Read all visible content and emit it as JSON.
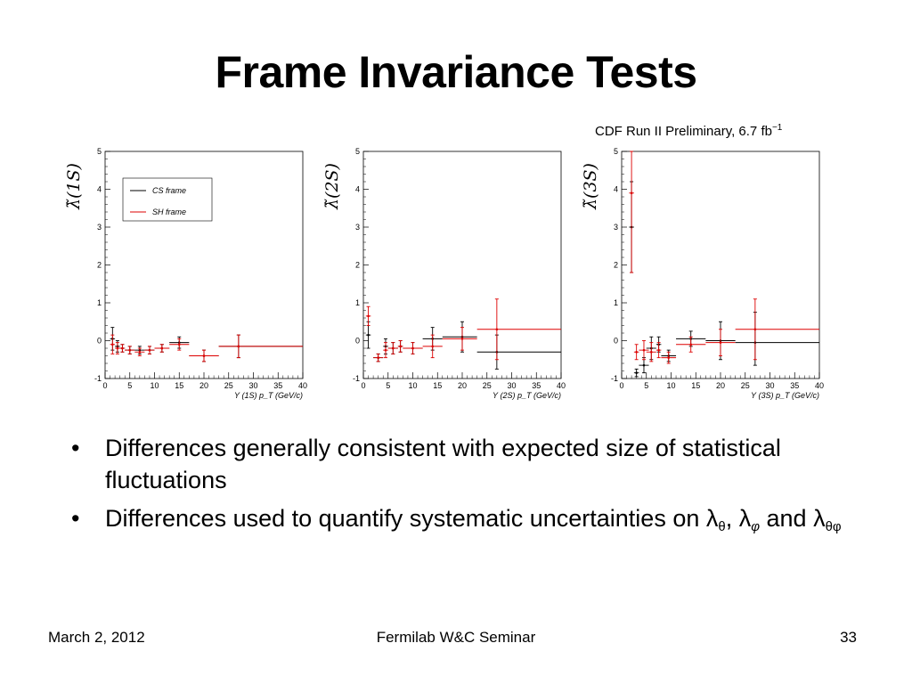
{
  "slide": {
    "title": "Frame Invariance Tests",
    "preliminary_label": "CDF Run II Preliminary, 6.7 fb",
    "preliminary_exp": "−1",
    "bullets": [
      {
        "text": "Differences generally consistent with expected size of statistical fluctuations"
      },
      {
        "text": "Differences used to quantify systematic uncertainties on ",
        "l1": "λ",
        "s1": "θ",
        "sep1": ", ",
        "l2": "λ",
        "s2": "φ",
        "sep2": " and ",
        "l3": "λ",
        "s3": "θφ"
      }
    ],
    "bullet_symbol": "•",
    "footer": {
      "date": "March 2, 2012",
      "event": "Fermilab W&C Seminar",
      "page": "33"
    }
  },
  "colors": {
    "cs_frame": "#000000",
    "sh_frame": "#dd0000"
  },
  "chart_data": [
    {
      "type": "scatter",
      "ylabel": "λ̃(1S)",
      "xlabel": "Υ (1S)  p_T  (GeV/c)",
      "xlim": [
        0,
        40
      ],
      "ylim": [
        -1,
        5
      ],
      "xticks": [
        "0",
        "5",
        "10",
        "15",
        "20",
        "25",
        "30",
        "35",
        "40"
      ],
      "yticks": [
        "-1",
        "0",
        "1",
        "2",
        "3",
        "4",
        "5"
      ],
      "legend": {
        "placement": "top-center",
        "entries": [
          "CS frame",
          "SH frame"
        ]
      },
      "series": [
        {
          "name": "CS frame",
          "points": [
            {
              "x": 1.5,
              "xlo": 1,
              "xhi": 2,
              "y": 0.05,
              "ylo": -0.25,
              "yhi": 0.35
            },
            {
              "x": 2.5,
              "xlo": 2,
              "xhi": 3,
              "y": -0.15,
              "ylo": -0.3,
              "yhi": 0.0
            },
            {
              "x": 3.5,
              "xlo": 3,
              "xhi": 4,
              "y": -0.2,
              "ylo": -0.3,
              "yhi": -0.1
            },
            {
              "x": 5,
              "xlo": 4,
              "xhi": 6,
              "y": -0.25,
              "ylo": -0.35,
              "yhi": -0.15
            },
            {
              "x": 7,
              "xlo": 6,
              "xhi": 8,
              "y": -0.25,
              "ylo": -0.35,
              "yhi": -0.15
            },
            {
              "x": 9,
              "xlo": 8,
              "xhi": 10,
              "y": -0.25,
              "ylo": -0.35,
              "yhi": -0.15
            },
            {
              "x": 11.5,
              "xlo": 10,
              "xhi": 13,
              "y": -0.2,
              "ylo": -0.3,
              "yhi": -0.1
            },
            {
              "x": 15,
              "xlo": 13,
              "xhi": 17,
              "y": -0.05,
              "ylo": -0.2,
              "yhi": 0.1
            },
            {
              "x": 20,
              "xlo": 17,
              "xhi": 23,
              "y": -0.4,
              "ylo": -0.55,
              "yhi": -0.25
            },
            {
              "x": 27,
              "xlo": 23,
              "xhi": 40,
              "y": -0.15,
              "ylo": -0.45,
              "yhi": 0.15
            }
          ]
        },
        {
          "name": "SH frame",
          "points": [
            {
              "x": 1.5,
              "xlo": 1,
              "xhi": 2,
              "y": -0.1,
              "ylo": -0.35,
              "yhi": 0.15
            },
            {
              "x": 2.5,
              "xlo": 2,
              "xhi": 3,
              "y": -0.2,
              "ylo": -0.35,
              "yhi": -0.05
            },
            {
              "x": 3.5,
              "xlo": 3,
              "xhi": 4,
              "y": -0.2,
              "ylo": -0.3,
              "yhi": -0.1
            },
            {
              "x": 5,
              "xlo": 4,
              "xhi": 6,
              "y": -0.25,
              "ylo": -0.35,
              "yhi": -0.15
            },
            {
              "x": 7,
              "xlo": 6,
              "xhi": 8,
              "y": -0.3,
              "ylo": -0.4,
              "yhi": -0.2
            },
            {
              "x": 9,
              "xlo": 8,
              "xhi": 10,
              "y": -0.25,
              "ylo": -0.35,
              "yhi": -0.15
            },
            {
              "x": 11.5,
              "xlo": 10,
              "xhi": 13,
              "y": -0.2,
              "ylo": -0.3,
              "yhi": -0.1
            },
            {
              "x": 15,
              "xlo": 13,
              "xhi": 17,
              "y": -0.1,
              "ylo": -0.25,
              "yhi": 0.05
            },
            {
              "x": 20,
              "xlo": 17,
              "xhi": 23,
              "y": -0.4,
              "ylo": -0.55,
              "yhi": -0.25
            },
            {
              "x": 27,
              "xlo": 23,
              "xhi": 40,
              "y": -0.15,
              "ylo": -0.45,
              "yhi": 0.15
            }
          ]
        }
      ]
    },
    {
      "type": "scatter",
      "ylabel": "λ̃(2S)",
      "xlabel": "Υ (2S)  p_T  (GeV/c)",
      "xlim": [
        0,
        40
      ],
      "ylim": [
        -1,
        5
      ],
      "xticks": [
        "0",
        "5",
        "10",
        "15",
        "20",
        "25",
        "30",
        "35",
        "40"
      ],
      "yticks": [
        "-1",
        "0",
        "1",
        "2",
        "3",
        "4",
        "5"
      ],
      "series": [
        {
          "name": "CS frame",
          "points": [
            {
              "x": 1,
              "xlo": 0.5,
              "xhi": 1.5,
              "y": 0.15,
              "ylo": -0.2,
              "yhi": 0.5
            },
            {
              "x": 3,
              "xlo": 2,
              "xhi": 4,
              "y": -0.45,
              "ylo": -0.55,
              "yhi": -0.35
            },
            {
              "x": 4.5,
              "xlo": 4,
              "xhi": 5,
              "y": -0.15,
              "ylo": -0.35,
              "yhi": 0.05
            },
            {
              "x": 6,
              "xlo": 5,
              "xhi": 7,
              "y": -0.2,
              "ylo": -0.35,
              "yhi": -0.05
            },
            {
              "x": 7.5,
              "xlo": 7,
              "xhi": 8,
              "y": -0.15,
              "ylo": -0.3,
              "yhi": 0.0
            },
            {
              "x": 10,
              "xlo": 8,
              "xhi": 12,
              "y": -0.2,
              "ylo": -0.35,
              "yhi": -0.05
            },
            {
              "x": 14,
              "xlo": 12,
              "xhi": 16,
              "y": 0.05,
              "ylo": -0.25,
              "yhi": 0.35
            },
            {
              "x": 20,
              "xlo": 16,
              "xhi": 23,
              "y": 0.1,
              "ylo": -0.3,
              "yhi": 0.5
            },
            {
              "x": 27,
              "xlo": 23,
              "xhi": 40,
              "y": -0.3,
              "ylo": -0.75,
              "yhi": 0.15
            }
          ]
        },
        {
          "name": "SH frame",
          "points": [
            {
              "x": 1,
              "xlo": 0.5,
              "xhi": 1.5,
              "y": 0.65,
              "ylo": 0.4,
              "yhi": 0.9
            },
            {
              "x": 3,
              "xlo": 2,
              "xhi": 4,
              "y": -0.45,
              "ylo": -0.55,
              "yhi": -0.35
            },
            {
              "x": 4.5,
              "xlo": 4,
              "xhi": 5,
              "y": -0.25,
              "ylo": -0.45,
              "yhi": -0.05
            },
            {
              "x": 6,
              "xlo": 5,
              "xhi": 7,
              "y": -0.2,
              "ylo": -0.35,
              "yhi": -0.05
            },
            {
              "x": 7.5,
              "xlo": 7,
              "xhi": 8,
              "y": -0.15,
              "ylo": -0.3,
              "yhi": 0.0
            },
            {
              "x": 10,
              "xlo": 8,
              "xhi": 12,
              "y": -0.2,
              "ylo": -0.35,
              "yhi": -0.05
            },
            {
              "x": 14,
              "xlo": 12,
              "xhi": 16,
              "y": -0.15,
              "ylo": -0.45,
              "yhi": 0.15
            },
            {
              "x": 20,
              "xlo": 16,
              "xhi": 23,
              "y": 0.05,
              "ylo": -0.25,
              "yhi": 0.35
            },
            {
              "x": 27,
              "xlo": 23,
              "xhi": 40,
              "y": 0.3,
              "ylo": -0.5,
              "yhi": 1.1
            }
          ]
        }
      ]
    },
    {
      "type": "scatter",
      "ylabel": "λ̃(3S)",
      "xlabel": "Υ (3S)  p_T  (GeV/c)",
      "xlim": [
        0,
        40
      ],
      "ylim": [
        -1,
        5
      ],
      "xticks": [
        "0",
        "5",
        "10",
        "15",
        "20",
        "25",
        "30",
        "35",
        "40"
      ],
      "yticks": [
        "-1",
        "0",
        "1",
        "2",
        "3",
        "4",
        "5"
      ],
      "series": [
        {
          "name": "CS frame",
          "points": [
            {
              "x": 2,
              "xlo": 1.5,
              "xhi": 2.5,
              "y": 3.0,
              "ylo": 1.8,
              "yhi": 4.2
            },
            {
              "x": 3,
              "xlo": 2.5,
              "xhi": 3.5,
              "y": -0.85,
              "ylo": -0.95,
              "yhi": -0.75
            },
            {
              "x": 4.5,
              "xlo": 3.5,
              "xhi": 5.5,
              "y": -0.65,
              "ylo": -0.85,
              "yhi": -0.45
            },
            {
              "x": 6,
              "xlo": 5,
              "xhi": 7,
              "y": -0.2,
              "ylo": -0.5,
              "yhi": 0.1
            },
            {
              "x": 7.5,
              "xlo": 7,
              "xhi": 8,
              "y": -0.1,
              "ylo": -0.3,
              "yhi": 0.1
            },
            {
              "x": 9.5,
              "xlo": 8,
              "xhi": 11,
              "y": -0.4,
              "ylo": -0.55,
              "yhi": -0.25
            },
            {
              "x": 14,
              "xlo": 11,
              "xhi": 17,
              "y": 0.05,
              "ylo": -0.15,
              "yhi": 0.25
            },
            {
              "x": 20,
              "xlo": 17,
              "xhi": 23,
              "y": 0.0,
              "ylo": -0.5,
              "yhi": 0.5
            },
            {
              "x": 27,
              "xlo": 23,
              "xhi": 40,
              "y": -0.05,
              "ylo": -0.65,
              "yhi": 0.75
            }
          ]
        },
        {
          "name": "SH frame",
          "points": [
            {
              "x": 2,
              "xlo": 1.5,
              "xhi": 2.5,
              "y": 3.9,
              "ylo": 1.8,
              "yhi": 5.0
            },
            {
              "x": 3,
              "xlo": 2.5,
              "xhi": 3.5,
              "y": -0.3,
              "ylo": -0.5,
              "yhi": -0.1
            },
            {
              "x": 4.5,
              "xlo": 3.5,
              "xhi": 5.5,
              "y": -0.25,
              "ylo": -0.5,
              "yhi": 0.0
            },
            {
              "x": 6,
              "xlo": 5,
              "xhi": 7,
              "y": -0.3,
              "ylo": -0.55,
              "yhi": -0.05
            },
            {
              "x": 7.5,
              "xlo": 7,
              "xhi": 8,
              "y": -0.25,
              "ylo": -0.45,
              "yhi": -0.05
            },
            {
              "x": 9.5,
              "xlo": 8,
              "xhi": 11,
              "y": -0.45,
              "ylo": -0.6,
              "yhi": -0.3
            },
            {
              "x": 14,
              "xlo": 11,
              "xhi": 17,
              "y": -0.1,
              "ylo": -0.3,
              "yhi": 0.1
            },
            {
              "x": 20,
              "xlo": 17,
              "xhi": 23,
              "y": -0.05,
              "ylo": -0.4,
              "yhi": 0.3
            },
            {
              "x": 27,
              "xlo": 23,
              "xhi": 40,
              "y": 0.3,
              "ylo": -0.5,
              "yhi": 1.1
            }
          ]
        }
      ]
    }
  ]
}
